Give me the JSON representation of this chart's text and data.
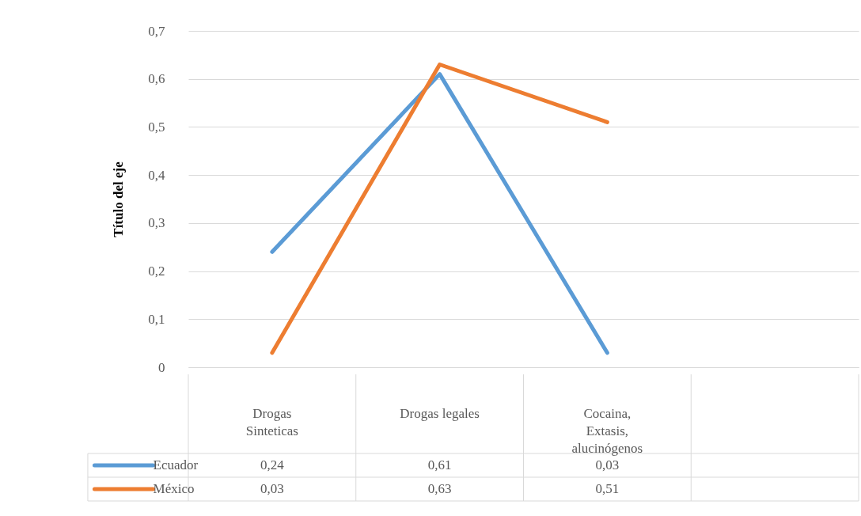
{
  "chart_data": {
    "type": "line",
    "ylabel": "Título del eje",
    "categories": [
      "Drogas Sinteticas",
      "Drogas legales",
      "Cocaina, Extasis, alucinógenos",
      null
    ],
    "series": [
      {
        "name": "Ecuador",
        "color": "#5b9bd5",
        "values": [
          0.24,
          0.61,
          0.03,
          null
        ],
        "value_labels": [
          "0,24",
          "0,61",
          "0,03",
          null
        ]
      },
      {
        "name": "México",
        "color": "#ed7d31",
        "values": [
          0.03,
          0.63,
          0.51,
          null
        ],
        "value_labels": [
          "0,03",
          "0,63",
          "0,51",
          null
        ]
      }
    ],
    "ylim": [
      0,
      0.7
    ],
    "yticks": [
      0,
      {
        "value": 0.1,
        "label": "0,1"
      },
      {
        "value": 0.2,
        "label": "0,2"
      },
      {
        "value": 0.3,
        "label": "0,3"
      },
      {
        "value": 0.4,
        "label": "0,4"
      },
      {
        "value": 0.5,
        "label": "0,5"
      },
      {
        "value": 0.6,
        "label": "0,6"
      },
      {
        "value": 0.7,
        "label": "0,7"
      }
    ],
    "grid": "y",
    "legend": "bottom",
    "marker": "none",
    "line_style": "solid"
  }
}
